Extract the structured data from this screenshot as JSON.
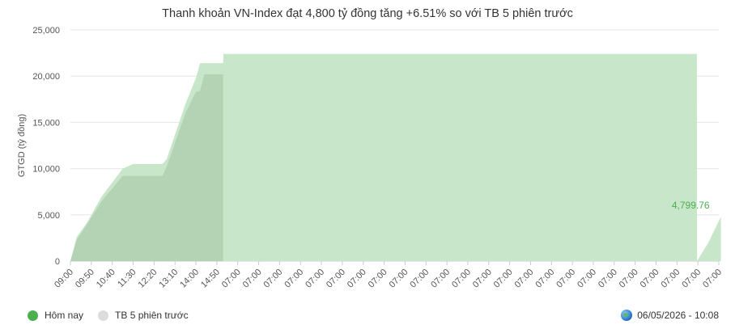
{
  "chart_data": {
    "type": "area",
    "title": "Thanh khoản VN-Index đạt 4,800 tỷ đồng tăng +6.51% so với TB 5 phiên trước",
    "ylabel": "GTGD (tỷ đồng)",
    "ylim": [
      0,
      25000
    ],
    "yticks": [
      "0",
      "5,000",
      "10,000",
      "15,000",
      "20,000",
      "25,000"
    ],
    "ytick_values": [
      0,
      5000,
      10000,
      15000,
      20000,
      25000
    ],
    "xticks": [
      "09:00",
      "09:50",
      "10:40",
      "11:30",
      "12:20",
      "13:10",
      "14:00",
      "14:50",
      "07:00",
      "07:00",
      "07:00",
      "07:00",
      "07:00",
      "07:00",
      "07:00",
      "07:00",
      "07:00",
      "07:00",
      "07:00",
      "07:00",
      "07:00",
      "07:00",
      "07:00",
      "07:00",
      "07:00",
      "07:00",
      "07:00",
      "07:00",
      "07:00",
      "07:00",
      "07:00",
      "07:00"
    ],
    "grid": true,
    "legend_position": "bottom-left",
    "end_value_label": "4,799.76",
    "series": [
      {
        "name": "TB 5 phiên trước",
        "color": "#c8e6c9",
        "x": [
          0,
          0.3,
          0.8,
          1.5,
          2.5,
          3.0,
          3.7,
          4.0,
          4.4,
          4.6,
          5.5,
          6.0,
          6.2,
          6.4,
          7.0,
          7.3,
          7.32,
          7.7,
          7.72,
          29.95,
          29.96,
          30.5,
          31.1
        ],
        "values": [
          0,
          2600,
          4200,
          7000,
          10000,
          10500,
          10500,
          10500,
          10500,
          11000,
          17000,
          19800,
          21400,
          21400,
          21400,
          21400,
          22400,
          22400,
          22400,
          22400,
          0,
          2000,
          4800
        ]
      },
      {
        "name": "Hôm nay",
        "color": "#b0cfb2",
        "x": [
          0,
          0.3,
          0.8,
          1.5,
          2.5,
          3.0,
          3.7,
          4.0,
          4.4,
          4.6,
          5.5,
          6.0,
          6.2,
          6.4,
          6.8,
          7.3
        ],
        "values": [
          0,
          2300,
          4000,
          6500,
          9200,
          9200,
          9200,
          9200,
          9200,
          10200,
          16000,
          18300,
          18400,
          20200,
          20200,
          20200
        ]
      }
    ]
  },
  "legend": {
    "items": [
      {
        "label": "Hôm nay",
        "color": "#4caf50"
      },
      {
        "label": "TB 5 phiên trước",
        "color": "#dcdcdc"
      }
    ]
  },
  "footer": {
    "timestamp": "06/05/2026 - 10:08"
  }
}
